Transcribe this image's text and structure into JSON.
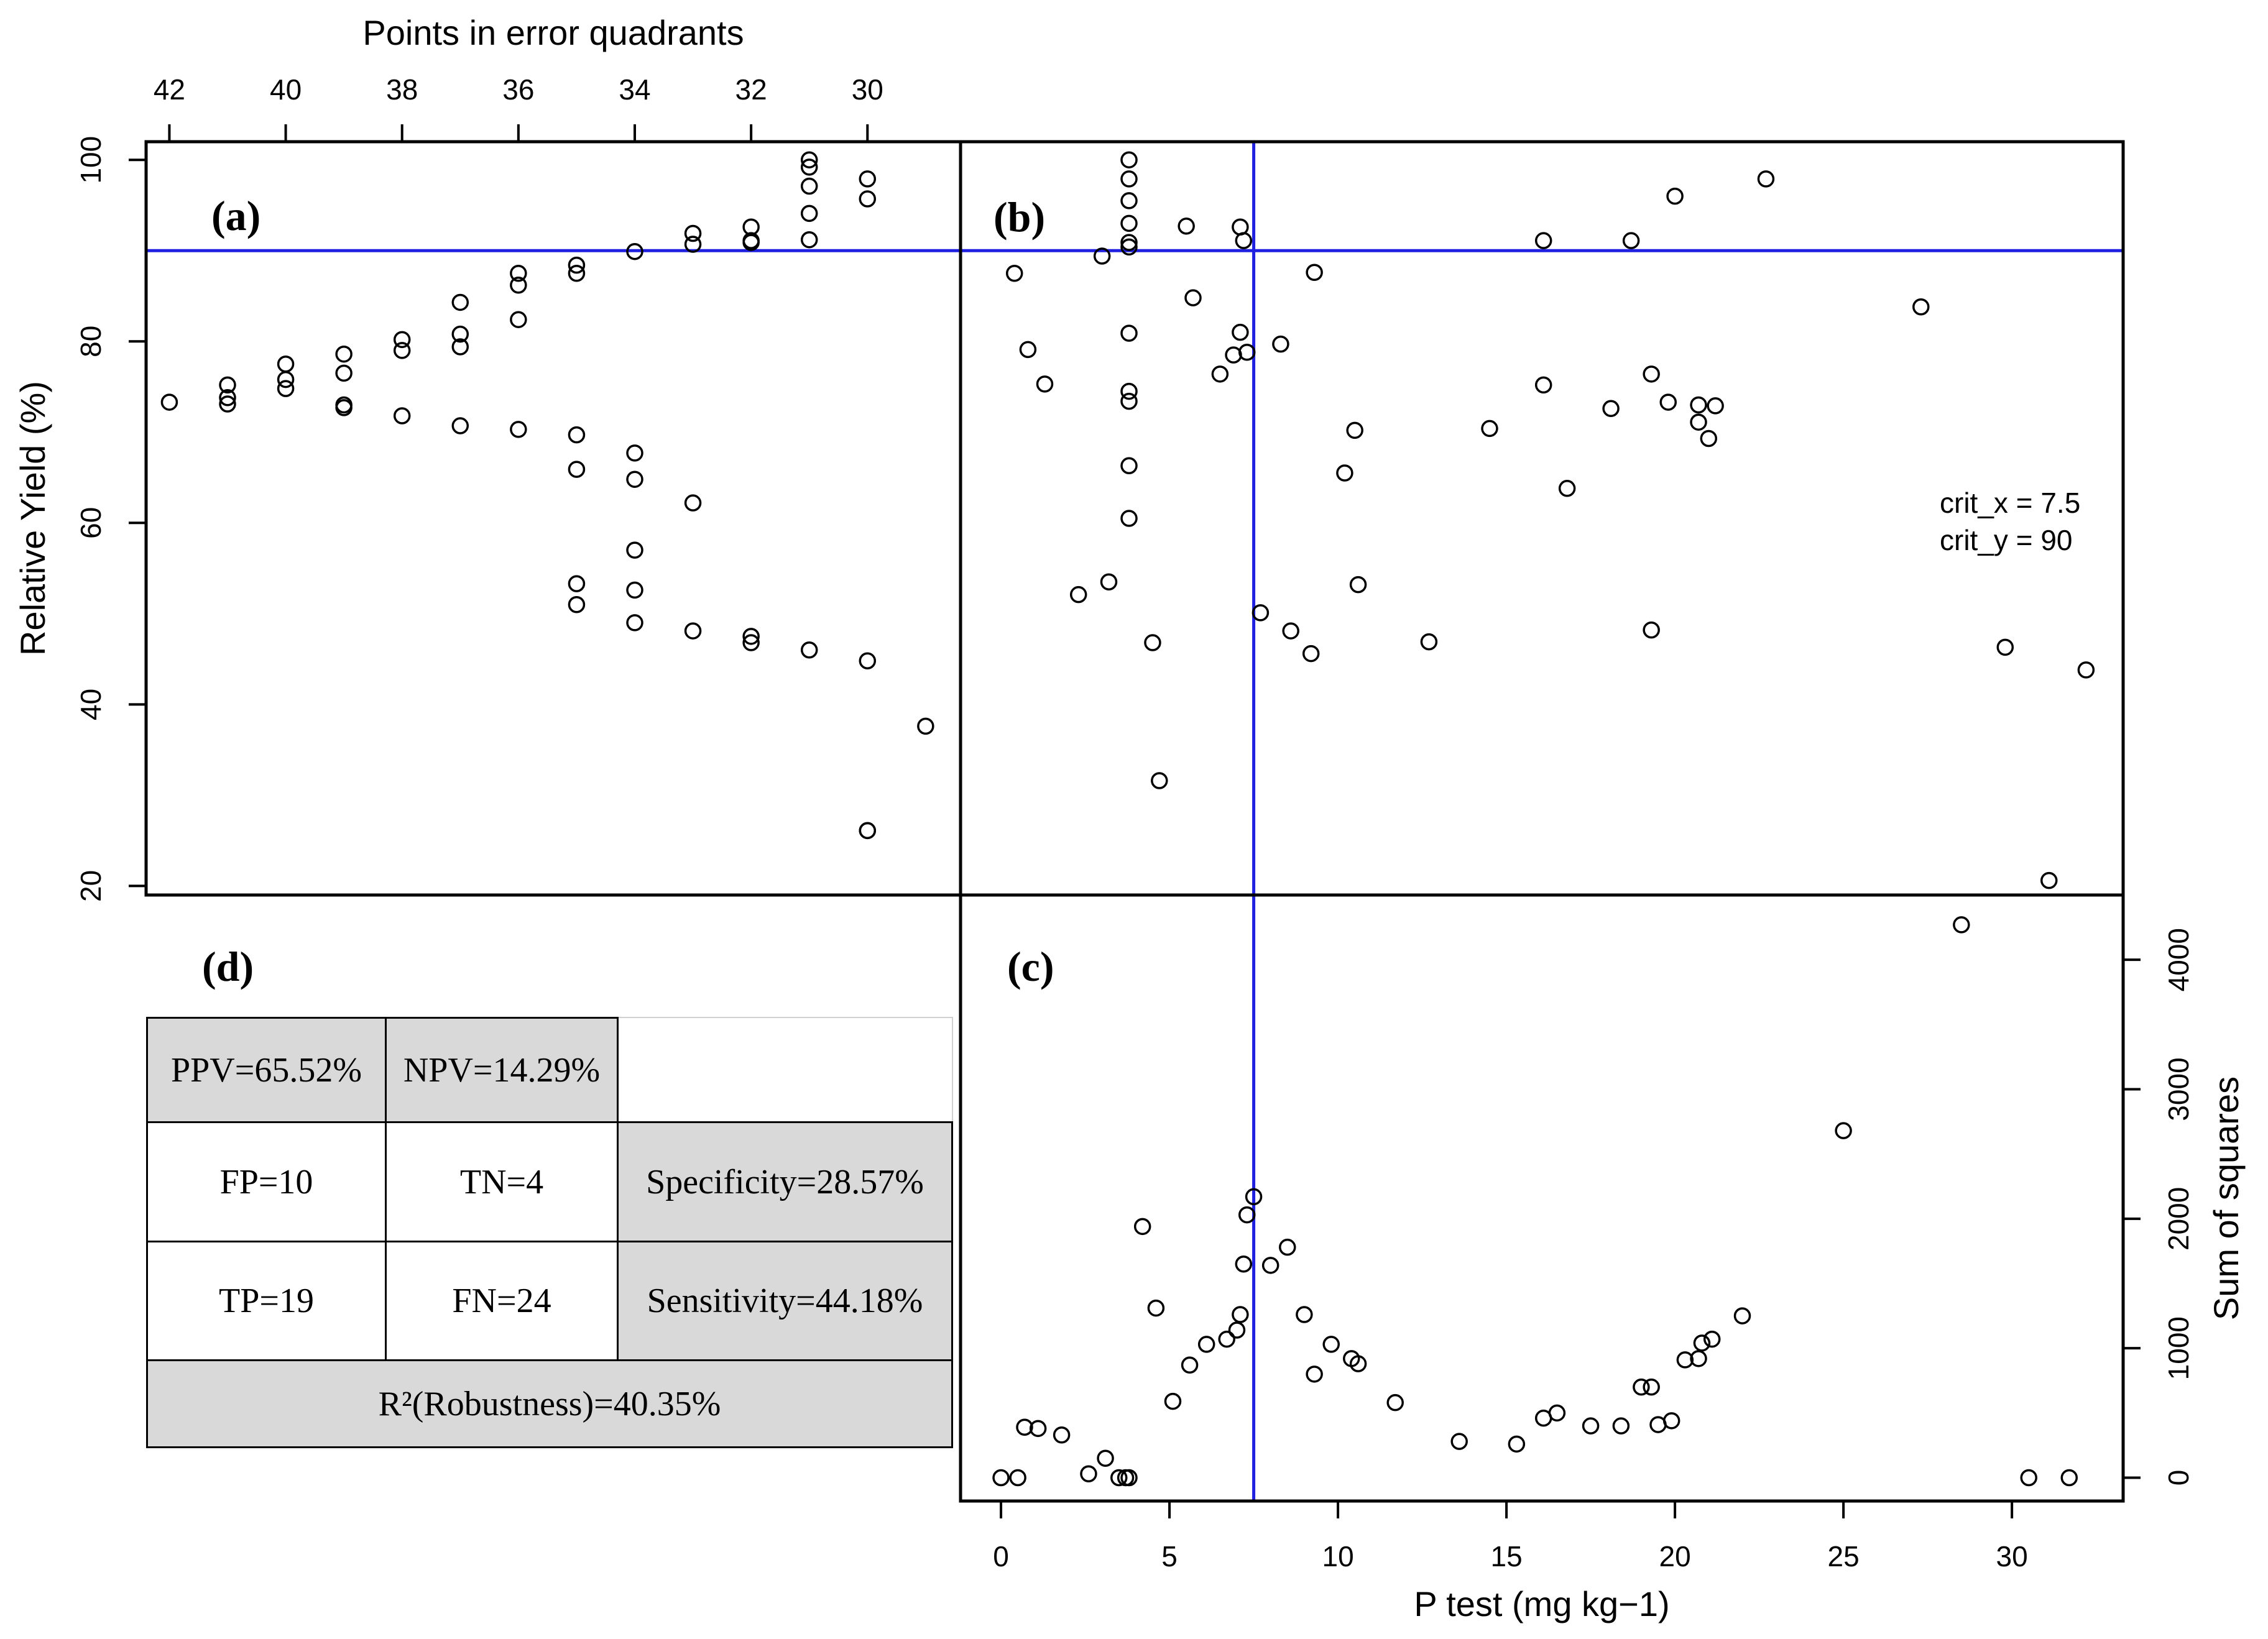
{
  "panels": {
    "a": "(a)",
    "b": "(b)",
    "c": "(c)",
    "d": "(d)"
  },
  "annotations": {
    "crit_x": "crit_x =  7.5",
    "crit_y": "crit_y =  90"
  },
  "matrix": {
    "ppv": "PPV=65.52%",
    "npv": "NPV=14.29%",
    "fp": "FP=10",
    "tn": "TN=4",
    "specificity": "Specificity=28.57%",
    "tp": "TP=19",
    "fn": "FN=24",
    "sensitivity": "Sensitivity=44.18%",
    "robustness": "R²(Robustness)=40.35%"
  },
  "chart_data": [
    {
      "id": "a",
      "type": "scatter",
      "title": "",
      "xlabel": "Points in error quadrants",
      "ylabel": "Relative Yield (%)",
      "xlim": [
        42.4,
        28.4
      ],
      "ylim": [
        19,
        102
      ],
      "xticks": [
        42,
        40,
        38,
        36,
        34,
        32,
        30
      ],
      "yticks": [
        20,
        40,
        60,
        80,
        100
      ],
      "hline": 90,
      "points": [
        [
          42,
          73.3
        ],
        [
          41,
          75.2
        ],
        [
          41,
          73.8
        ],
        [
          41,
          73.1
        ],
        [
          40,
          77.5
        ],
        [
          40,
          75.8
        ],
        [
          40,
          74.8
        ],
        [
          39,
          78.6
        ],
        [
          39,
          76.5
        ],
        [
          39,
          73.0
        ],
        [
          39,
          72.7
        ],
        [
          38,
          80.2
        ],
        [
          38,
          79.0
        ],
        [
          38,
          71.8
        ],
        [
          37,
          84.3
        ],
        [
          37,
          80.8
        ],
        [
          37,
          79.4
        ],
        [
          37,
          70.7
        ],
        [
          36,
          87.5
        ],
        [
          36,
          86.2
        ],
        [
          36,
          82.4
        ],
        [
          36,
          70.3
        ],
        [
          35,
          88.4
        ],
        [
          35,
          87.5
        ],
        [
          35,
          69.7
        ],
        [
          35,
          65.9
        ],
        [
          35,
          53.3
        ],
        [
          35,
          51.0
        ],
        [
          34,
          89.9
        ],
        [
          34,
          67.7
        ],
        [
          34,
          64.8
        ],
        [
          34,
          57.0
        ],
        [
          34,
          52.6
        ],
        [
          34,
          49.0
        ],
        [
          33,
          91.9
        ],
        [
          33,
          90.7
        ],
        [
          33,
          62.2
        ],
        [
          33,
          48.1
        ],
        [
          32,
          92.6
        ],
        [
          32,
          91.1
        ],
        [
          32,
          90.9
        ],
        [
          32,
          47.5
        ],
        [
          32,
          46.8
        ],
        [
          31,
          100.0
        ],
        [
          31,
          99.2
        ],
        [
          31,
          97.1
        ],
        [
          31,
          94.1
        ],
        [
          31,
          91.2
        ],
        [
          31,
          46.0
        ],
        [
          30,
          97.9
        ],
        [
          30,
          95.7
        ],
        [
          30,
          44.8
        ],
        [
          30,
          26.1
        ],
        [
          30,
          26.1
        ],
        [
          29,
          37.6
        ]
      ]
    },
    {
      "id": "b",
      "type": "scatter",
      "title": "",
      "xlabel": "",
      "ylabel": "",
      "xlim": [
        -1.2,
        33.3
      ],
      "ylim": [
        19,
        102
      ],
      "vline": 7.5,
      "hline": 90,
      "points": [
        [
          0.4,
          87.5
        ],
        [
          0.8,
          79.1
        ],
        [
          1.3,
          75.3
        ],
        [
          2.3,
          52.1
        ],
        [
          3.0,
          89.4
        ],
        [
          3.2,
          53.5
        ],
        [
          3.8,
          100.0
        ],
        [
          3.8,
          97.9
        ],
        [
          3.8,
          95.5
        ],
        [
          3.8,
          93.0
        ],
        [
          3.8,
          90.9
        ],
        [
          3.8,
          90.4
        ],
        [
          3.8,
          80.9
        ],
        [
          3.8,
          74.5
        ],
        [
          3.8,
          73.4
        ],
        [
          3.8,
          66.3
        ],
        [
          3.8,
          60.5
        ],
        [
          4.5,
          46.8
        ],
        [
          4.7,
          31.6
        ],
        [
          5.5,
          92.7
        ],
        [
          5.7,
          84.8
        ],
        [
          6.5,
          76.4
        ],
        [
          6.9,
          78.5
        ],
        [
          7.1,
          92.6
        ],
        [
          7.1,
          81.0
        ],
        [
          7.2,
          91.1
        ],
        [
          7.3,
          78.8
        ],
        [
          7.7,
          50.1
        ],
        [
          8.3,
          79.7
        ],
        [
          8.6,
          48.1
        ],
        [
          9.2,
          45.6
        ],
        [
          9.3,
          87.6
        ],
        [
          10.2,
          65.5
        ],
        [
          10.5,
          70.2
        ],
        [
          10.6,
          53.2
        ],
        [
          12.7,
          46.9
        ],
        [
          14.5,
          70.4
        ],
        [
          16.1,
          91.1
        ],
        [
          16.1,
          75.2
        ],
        [
          16.8,
          63.8
        ],
        [
          18.1,
          72.6
        ],
        [
          18.7,
          91.1
        ],
        [
          19.3,
          76.4
        ],
        [
          19.3,
          48.2
        ],
        [
          19.8,
          73.3
        ],
        [
          20.0,
          96.0
        ],
        [
          20.7,
          73.0
        ],
        [
          20.7,
          71.1
        ],
        [
          21.0,
          69.3
        ],
        [
          21.2,
          72.9
        ],
        [
          22.7,
          97.9
        ],
        [
          27.3,
          83.8
        ],
        [
          29.8,
          46.3
        ],
        [
          31.1,
          20.6
        ],
        [
          32.2,
          43.8
        ]
      ]
    },
    {
      "id": "c",
      "type": "scatter",
      "title": "",
      "xlabel": "P test (mg kg−1)",
      "ylabel": "Sum of squares",
      "xlim": [
        -1.2,
        33.3
      ],
      "ylim": [
        -180,
        4500
      ],
      "xticks": [
        0,
        5,
        10,
        15,
        20,
        25,
        30
      ],
      "yticks": [
        0,
        1000,
        2000,
        3000,
        4000
      ],
      "vline": 7.5,
      "points": [
        [
          0,
          0
        ],
        [
          0.5,
          0
        ],
        [
          0.7,
          390
        ],
        [
          1.1,
          380
        ],
        [
          1.8,
          330
        ],
        [
          2.6,
          30
        ],
        [
          3.1,
          150
        ],
        [
          3.5,
          0
        ],
        [
          3.7,
          0
        ],
        [
          3.8,
          0
        ],
        [
          4.2,
          1940
        ],
        [
          4.6,
          1310
        ],
        [
          5.1,
          590
        ],
        [
          5.6,
          870
        ],
        [
          6.1,
          1030
        ],
        [
          6.7,
          1070
        ],
        [
          7.0,
          1140
        ],
        [
          7.1,
          1260
        ],
        [
          7.2,
          1650
        ],
        [
          7.3,
          2030
        ],
        [
          7.5,
          2170
        ],
        [
          8.0,
          1640
        ],
        [
          8.5,
          1780
        ],
        [
          9.0,
          1260
        ],
        [
          9.3,
          800
        ],
        [
          9.8,
          1030
        ],
        [
          10.4,
          920
        ],
        [
          10.6,
          880
        ],
        [
          11.7,
          580
        ],
        [
          13.6,
          280
        ],
        [
          15.3,
          260
        ],
        [
          16.1,
          460
        ],
        [
          16.5,
          500
        ],
        [
          17.5,
          400
        ],
        [
          18.4,
          400
        ],
        [
          19.0,
          700
        ],
        [
          19.3,
          700
        ],
        [
          19.5,
          410
        ],
        [
          19.9,
          440
        ],
        [
          20.3,
          910
        ],
        [
          20.7,
          920
        ],
        [
          20.8,
          1040
        ],
        [
          21.1,
          1070
        ],
        [
          22.0,
          1250
        ],
        [
          25.0,
          2680
        ],
        [
          28.5,
          4270
        ],
        [
          30.5,
          0
        ],
        [
          31.7,
          0
        ]
      ]
    }
  ]
}
